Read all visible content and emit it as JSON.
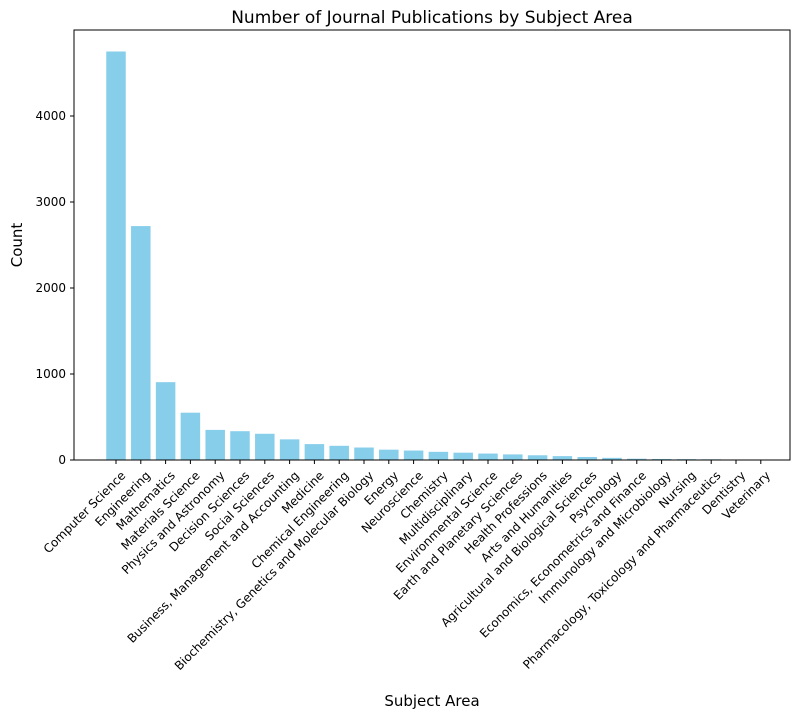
{
  "chart_data": {
    "type": "bar",
    "title": "Number of Journal Publications by Subject Area",
    "xlabel": "Subject Area",
    "ylabel": "Count",
    "ylim": [
      0,
      5000
    ],
    "yticks": [
      0,
      1000,
      2000,
      3000,
      4000
    ],
    "grid": false,
    "bar_color": "#87CEEB",
    "categories": [
      "Computer Science",
      "Engineering",
      "Mathematics",
      "Materials Science",
      "Physics and Astronomy",
      "Decision Sciences",
      "Social Sciences",
      "Business, Management and Accounting",
      "Medicine",
      "Chemical Engineering",
      "Biochemistry, Genetics and Molecular Biology",
      "Energy",
      "Neuroscience",
      "Chemistry",
      "Multidisciplinary",
      "Environmental Science",
      "Earth and Planetary Sciences",
      "Health Professions",
      "Arts and Humanities",
      "Agricultural and Biological Sciences",
      "Psychology",
      "Economics, Econometrics and Finance",
      "Immunology and Microbiology",
      "Nursing",
      "Pharmacology, Toxicology and Pharmaceutics",
      "Dentistry",
      "Veterinary"
    ],
    "values": [
      4750,
      2720,
      905,
      550,
      350,
      335,
      305,
      240,
      185,
      165,
      145,
      120,
      110,
      95,
      85,
      75,
      65,
      55,
      45,
      35,
      25,
      15,
      12,
      10,
      8,
      5,
      3
    ]
  }
}
